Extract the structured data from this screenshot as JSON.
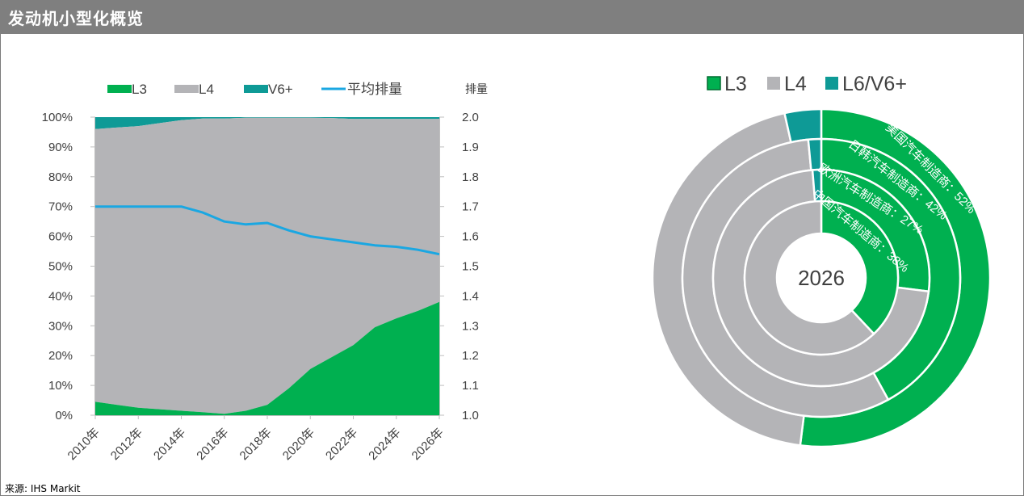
{
  "header": {
    "title": "发动机小型化概览"
  },
  "source": "来源: IHS Markit",
  "colors": {
    "l3": "#00b050",
    "l4": "#b4b4b7",
    "v6": "#0e9a96",
    "line": "#1aa7e2",
    "grid_text": "#404040"
  },
  "chart_data": [
    {
      "type": "area",
      "title": "",
      "y2label": "排量",
      "legend": [
        "L3",
        "L4",
        "V6+",
        "平均排量"
      ],
      "x": [
        2010,
        2011,
        2012,
        2013,
        2014,
        2015,
        2016,
        2017,
        2018,
        2019,
        2020,
        2021,
        2022,
        2023,
        2024,
        2025,
        2026
      ],
      "xtick_labels": [
        "2010年",
        "2012年",
        "2014年",
        "2016年",
        "2018年",
        "2020年",
        "2022年",
        "2024年",
        "2026年"
      ],
      "ytick_labels": [
        "0%",
        "10%",
        "20%",
        "30%",
        "40%",
        "50%",
        "60%",
        "70%",
        "80%",
        "90%",
        "100%"
      ],
      "y2tick_labels": [
        "1.0",
        "1.1",
        "1.2",
        "1.3",
        "1.4",
        "1.5",
        "1.6",
        "1.7",
        "1.8",
        "1.9",
        "2.0"
      ],
      "ylim": [
        0,
        100
      ],
      "y2lim": [
        1.0,
        2.0
      ],
      "series": [
        {
          "name": "L3",
          "values": [
            4.5,
            3.5,
            2.5,
            2.0,
            1.5,
            1.0,
            0.5,
            1.5,
            3.5,
            9.0,
            15.5,
            19.5,
            23.5,
            29.5,
            32.5,
            35.0,
            38.0
          ]
        },
        {
          "name": "L4",
          "values": [
            91.5,
            93.0,
            94.5,
            96.0,
            97.5,
            98.5,
            99.0,
            98.3,
            96.3,
            90.8,
            84.3,
            80.2,
            75.9,
            69.9,
            66.9,
            64.4,
            61.4
          ]
        },
        {
          "name": "V6+",
          "values": [
            4.0,
            3.5,
            3.0,
            2.0,
            1.0,
            0.5,
            0.5,
            0.2,
            0.2,
            0.2,
            0.2,
            0.3,
            0.6,
            0.6,
            0.6,
            0.6,
            0.6
          ]
        },
        {
          "name": "平均排量",
          "axis": "right",
          "values": [
            1.7,
            1.7,
            1.7,
            1.7,
            1.7,
            1.68,
            1.65,
            1.64,
            1.645,
            1.62,
            1.6,
            1.59,
            1.58,
            1.57,
            1.565,
            1.555,
            1.54
          ]
        }
      ]
    },
    {
      "type": "pie",
      "subtype": "nested-doughnut",
      "center_label": "2026",
      "legend": [
        "L3",
        "L4",
        "L6/V6+"
      ],
      "rings": [
        {
          "label": "美国汽车制造商",
          "values": {
            "L3": 52,
            "L4": 44.5,
            "L6/V6+": 3.5
          },
          "text": "美国汽车制造商：52%"
        },
        {
          "label": "日韩汽车制造商",
          "values": {
            "L3": 42,
            "L4": 56.5,
            "L6/V6+": 1.5
          },
          "text": "日韩汽车制造商：42%"
        },
        {
          "label": "欧洲汽车制造商",
          "values": {
            "L3": 27,
            "L4": 71.7,
            "L6/V6+": 1.3
          },
          "text": "欧洲汽车制造商：27%"
        },
        {
          "label": "中国汽车制造商",
          "values": {
            "L3": 38,
            "L4": 62,
            "L6/V6+": 0
          },
          "text": "中国汽车制造商：38%"
        }
      ]
    }
  ]
}
